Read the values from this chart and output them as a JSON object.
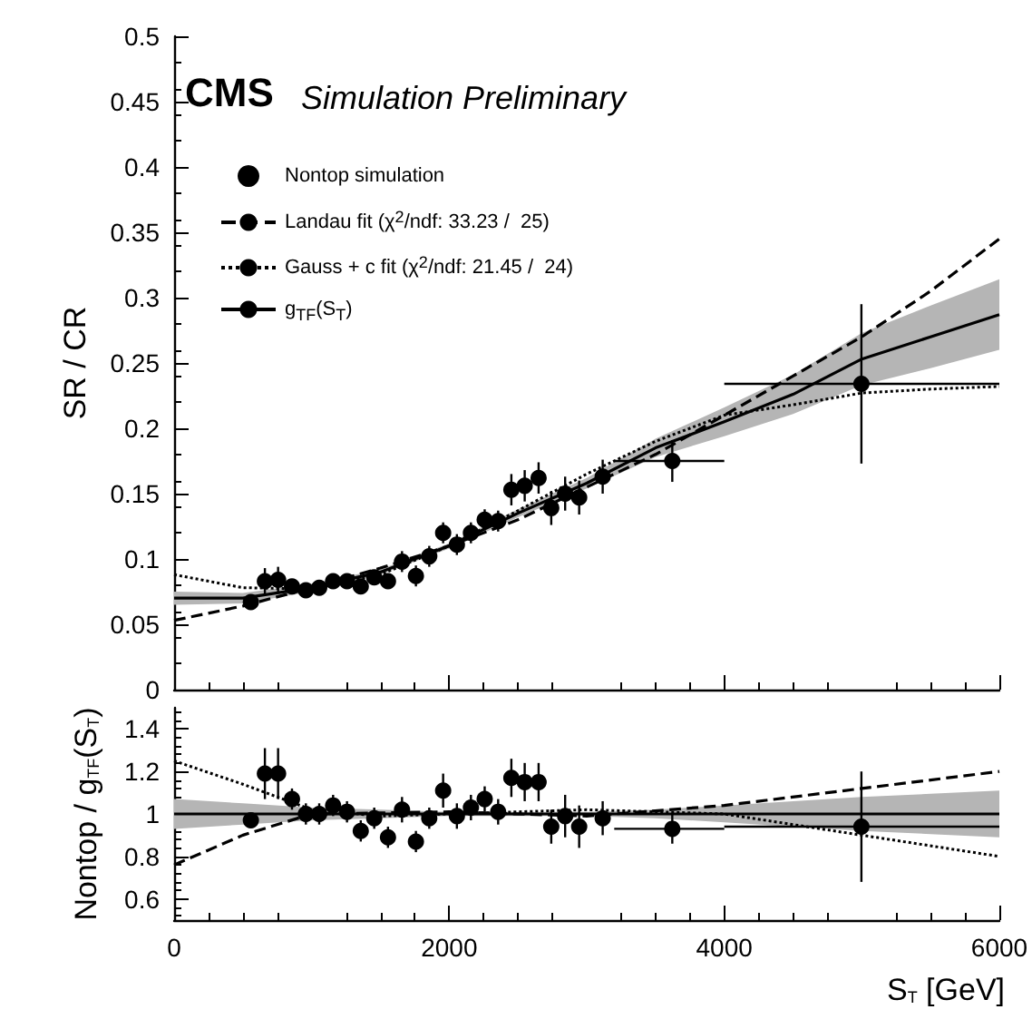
{
  "chart_data": [
    {
      "type": "scatter",
      "ylabel": "SR / CR",
      "annotations": [
        "CMS",
        "Simulation Preliminary"
      ],
      "xlim": [
        0,
        6000
      ],
      "xticks": [
        0,
        2000,
        4000,
        6000
      ],
      "ylim": [
        0,
        0.5
      ],
      "yticks": [
        0,
        0.05,
        0.1,
        0.15,
        0.2,
        0.25,
        0.3,
        0.35,
        0.4,
        0.45,
        0.5
      ],
      "tick_labels": "y",
      "legend": "top left",
      "grid": false,
      "series": [
        {
          "name": "Nontop simulation",
          "type": "scatter",
          "marker": "circle",
          "color": "#000000",
          "x": [
            558,
            660,
            756,
            857,
            958,
            1055,
            1156,
            1257,
            1357,
            1455,
            1555,
            1657,
            1758,
            1855,
            1956,
            2056,
            2158,
            2258,
            2356,
            2452,
            2549,
            2650,
            2742,
            2843,
            2945,
            3116,
            3622,
            4997
          ],
          "values": [
            0.067,
            0.083,
            0.084,
            0.079,
            0.076,
            0.078,
            0.083,
            0.083,
            0.079,
            0.086,
            0.083,
            0.098,
            0.087,
            0.102,
            0.12,
            0.111,
            0.12,
            0.13,
            0.129,
            0.153,
            0.156,
            0.162,
            0.139,
            0.15,
            0.147,
            0.163,
            0.175,
            0.234
          ],
          "errors": [
            0.005,
            0.01,
            0.01,
            0.005,
            0.005,
            0.005,
            0.005,
            0.005,
            0.005,
            0.005,
            0.005,
            0.008,
            0.008,
            0.008,
            0.008,
            0.008,
            0.008,
            0.008,
            0.008,
            0.012,
            0.012,
            0.012,
            0.013,
            0.013,
            0.013,
            0.013,
            0.016,
            0.061
          ],
          "xerrors": [
            null,
            null,
            null,
            null,
            null,
            null,
            null,
            null,
            null,
            null,
            null,
            null,
            null,
            null,
            null,
            null,
            null,
            null,
            null,
            null,
            null,
            null,
            null,
            null,
            null,
            null,
            [
              3200,
              4000
            ],
            [
              4000,
              6000
            ]
          ]
        },
        {
          "name": "Landau fit (χ$^{2}$/ndf: 33.23 /  25)",
          "type": "line",
          "line_style": "dashed",
          "color": "#000000",
          "x": [
            0,
            500,
            1000,
            1500,
            2000,
            2500,
            3000,
            3500,
            4000,
            4500,
            5000,
            5500,
            6000
          ],
          "values": [
            0.053,
            0.064,
            0.078,
            0.093,
            0.11,
            0.13,
            0.155,
            0.18,
            0.21,
            0.24,
            0.27,
            0.305,
            0.345
          ]
        },
        {
          "name": "Gauss + c fit (χ$^{2}$/ndf: 21.45 /  24)",
          "type": "line",
          "line_style": "dotted",
          "color": "#000000",
          "x": [
            0,
            500,
            1000,
            1500,
            2000,
            2500,
            3000,
            3500,
            4000,
            4500,
            5000,
            5500,
            6000
          ],
          "values": [
            0.088,
            0.078,
            0.077,
            0.088,
            0.11,
            0.137,
            0.165,
            0.19,
            0.21,
            0.218,
            0.227,
            0.23,
            0.232
          ]
        },
        {
          "name": "g$_{TF}$(S$_{T}$)",
          "type": "line",
          "line_style": "solid",
          "color": "#000000",
          "x": [
            0,
            500,
            1000,
            1500,
            2000,
            2500,
            3000,
            3500,
            4000,
            4500,
            5000,
            5500,
            6000
          ],
          "values": [
            0.07,
            0.07,
            0.078,
            0.09,
            0.11,
            0.135,
            0.158,
            0.185,
            0.205,
            0.226,
            0.253,
            0.27,
            0.287
          ],
          "lower": [
            0.065,
            0.066,
            0.075,
            0.088,
            0.108,
            0.132,
            0.154,
            0.178,
            0.194,
            0.211,
            0.233,
            0.246,
            0.26
          ],
          "upper": [
            0.075,
            0.074,
            0.081,
            0.092,
            0.112,
            0.138,
            0.162,
            0.192,
            0.216,
            0.241,
            0.273,
            0.294,
            0.314
          ]
        }
      ]
    },
    {
      "type": "scatter",
      "xlabel": "S$_{T}$ [GeV]",
      "ylabel": "Nontop / g$_{TF}$(S$_{T}$)",
      "xlim": [
        0,
        6000
      ],
      "xticks": [
        0,
        2000,
        4000,
        6000
      ],
      "ylim": [
        0.5,
        1.5
      ],
      "yticks": [
        0.6,
        0.8,
        1,
        1.2,
        1.4
      ],
      "grid": false,
      "series": [
        {
          "type": "scatter",
          "marker": "circle",
          "color": "#000000",
          "x": [
            558,
            660,
            756,
            857,
            958,
            1055,
            1156,
            1257,
            1357,
            1455,
            1555,
            1657,
            1758,
            1855,
            1956,
            2056,
            2158,
            2258,
            2356,
            2452,
            2549,
            2650,
            2742,
            2843,
            2945,
            3116,
            3622,
            4997
          ],
          "values": [
            0.97,
            1.19,
            1.19,
            1.07,
            1.0,
            1.0,
            1.04,
            1.01,
            0.92,
            0.98,
            0.89,
            1.02,
            0.87,
            0.98,
            1.11,
            0.99,
            1.03,
            1.07,
            1.01,
            1.17,
            1.15,
            1.15,
            0.94,
            0.99,
            0.94,
            0.98,
            0.93,
            0.94
          ],
          "errors": [
            0.03,
            0.12,
            0.12,
            0.05,
            0.05,
            0.05,
            0.05,
            0.05,
            0.05,
            0.05,
            0.05,
            0.06,
            0.05,
            0.05,
            0.08,
            0.06,
            0.06,
            0.06,
            0.06,
            0.09,
            0.09,
            0.09,
            0.08,
            0.1,
            0.1,
            0.08,
            0.07,
            0.26
          ],
          "xerrors": [
            null,
            null,
            null,
            null,
            null,
            null,
            null,
            null,
            null,
            null,
            null,
            null,
            null,
            null,
            null,
            null,
            null,
            null,
            null,
            null,
            null,
            null,
            null,
            null,
            null,
            null,
            [
              3200,
              4000
            ],
            [
              4000,
              6000
            ]
          ]
        },
        {
          "type": "line",
          "line_style": "dashed",
          "color": "#000000",
          "x": [
            0,
            500,
            1000,
            2000,
            3000,
            4000,
            5000,
            6000
          ],
          "values": [
            0.76,
            0.9,
            1.0,
            1.01,
            0.99,
            1.04,
            1.12,
            1.2
          ]
        },
        {
          "type": "line",
          "line_style": "dotted",
          "color": "#000000",
          "x": [
            0,
            500,
            1000,
            1500,
            2000,
            3000,
            4000,
            5000,
            6000
          ],
          "values": [
            1.25,
            1.14,
            1.02,
            0.99,
            1.0,
            1.02,
            1.0,
            0.9,
            0.8
          ]
        },
        {
          "type": "line",
          "line_style": "solid",
          "color": "#000000",
          "x": [
            0,
            500,
            1000,
            1500,
            2000,
            2500,
            3000,
            3500,
            4000,
            4500,
            5000,
            5500,
            6000
          ],
          "values": [
            1,
            1,
            1,
            1,
            1,
            1,
            1,
            1,
            1,
            1,
            1,
            1,
            1
          ],
          "lower": [
            0.93,
            0.95,
            0.97,
            0.98,
            0.99,
            0.99,
            0.99,
            0.98,
            0.96,
            0.94,
            0.92,
            0.905,
            0.89
          ],
          "upper": [
            1.07,
            1.05,
            1.03,
            1.02,
            1.01,
            1.01,
            1.01,
            1.02,
            1.04,
            1.06,
            1.08,
            1.095,
            1.11
          ]
        }
      ]
    }
  ]
}
